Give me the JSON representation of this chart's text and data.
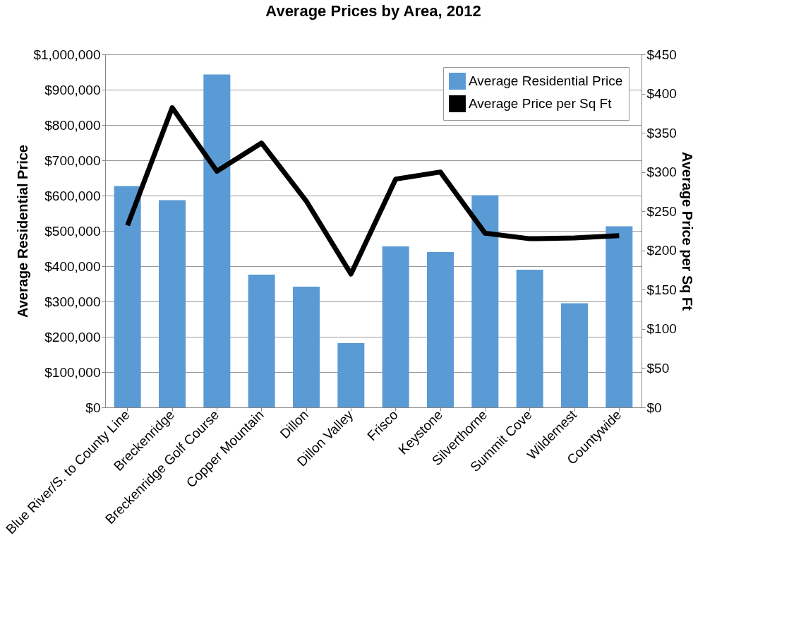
{
  "chart_data": {
    "type": "bar",
    "title": "Average Prices by Area, 2012",
    "categories": [
      "Blue River/S. to County Line",
      "Breckenridge",
      "Breckenridge Golf Course",
      "Copper Mountain",
      "Dillon",
      "Dillon Valley",
      "Frisco",
      "Keystone",
      "Silverthorne",
      "Summit Cove",
      "Wildernest",
      "Countywide"
    ],
    "series": [
      {
        "name": "Average Residential Price",
        "color": "#5b9bd5",
        "values": [
          627000,
          587000,
          943000,
          376000,
          342000,
          182000,
          456000,
          440000,
          601000,
          390000,
          295000,
          513000
        ]
      },
      {
        "name": "Average Price per Sq Ft",
        "type": "line",
        "axis": "y2",
        "color": "#000000",
        "values": [
          232,
          382,
          301,
          337,
          263,
          170,
          291,
          300,
          222,
          215,
          216,
          219
        ]
      }
    ],
    "ylabel": "Average Residential Price",
    "y2label": "Average Price per Sq Ft",
    "ylim": [
      0,
      1000000
    ],
    "yticks": [
      {
        "value": 0,
        "label": "$0"
      },
      {
        "value": 100000,
        "label": "$100,000"
      },
      {
        "value": 200000,
        "label": "$200,000"
      },
      {
        "value": 300000,
        "label": "$300,000"
      },
      {
        "value": 400000,
        "label": "$400,000"
      },
      {
        "value": 500000,
        "label": "$500,000"
      },
      {
        "value": 600000,
        "label": "$600,000"
      },
      {
        "value": 700000,
        "label": "$700,000"
      },
      {
        "value": 800000,
        "label": "$800,000"
      },
      {
        "value": 900000,
        "label": "$900,000"
      },
      {
        "value": 1000000,
        "label": "$1,000,000"
      }
    ],
    "y2lim": [
      0,
      450
    ],
    "y2ticks": [
      {
        "value": 0,
        "label": "$0"
      },
      {
        "value": 50,
        "label": "$50"
      },
      {
        "value": 100,
        "label": "$100"
      },
      {
        "value": 150,
        "label": "$150"
      },
      {
        "value": 200,
        "label": "$200"
      },
      {
        "value": 250,
        "label": "$250"
      },
      {
        "value": 300,
        "label": "$300"
      },
      {
        "value": 350,
        "label": "$350"
      },
      {
        "value": 400,
        "label": "$400"
      },
      {
        "value": 450,
        "label": "$450"
      }
    ],
    "grid": "y",
    "legend": "top right",
    "line_style": "solid",
    "marker": "none"
  }
}
